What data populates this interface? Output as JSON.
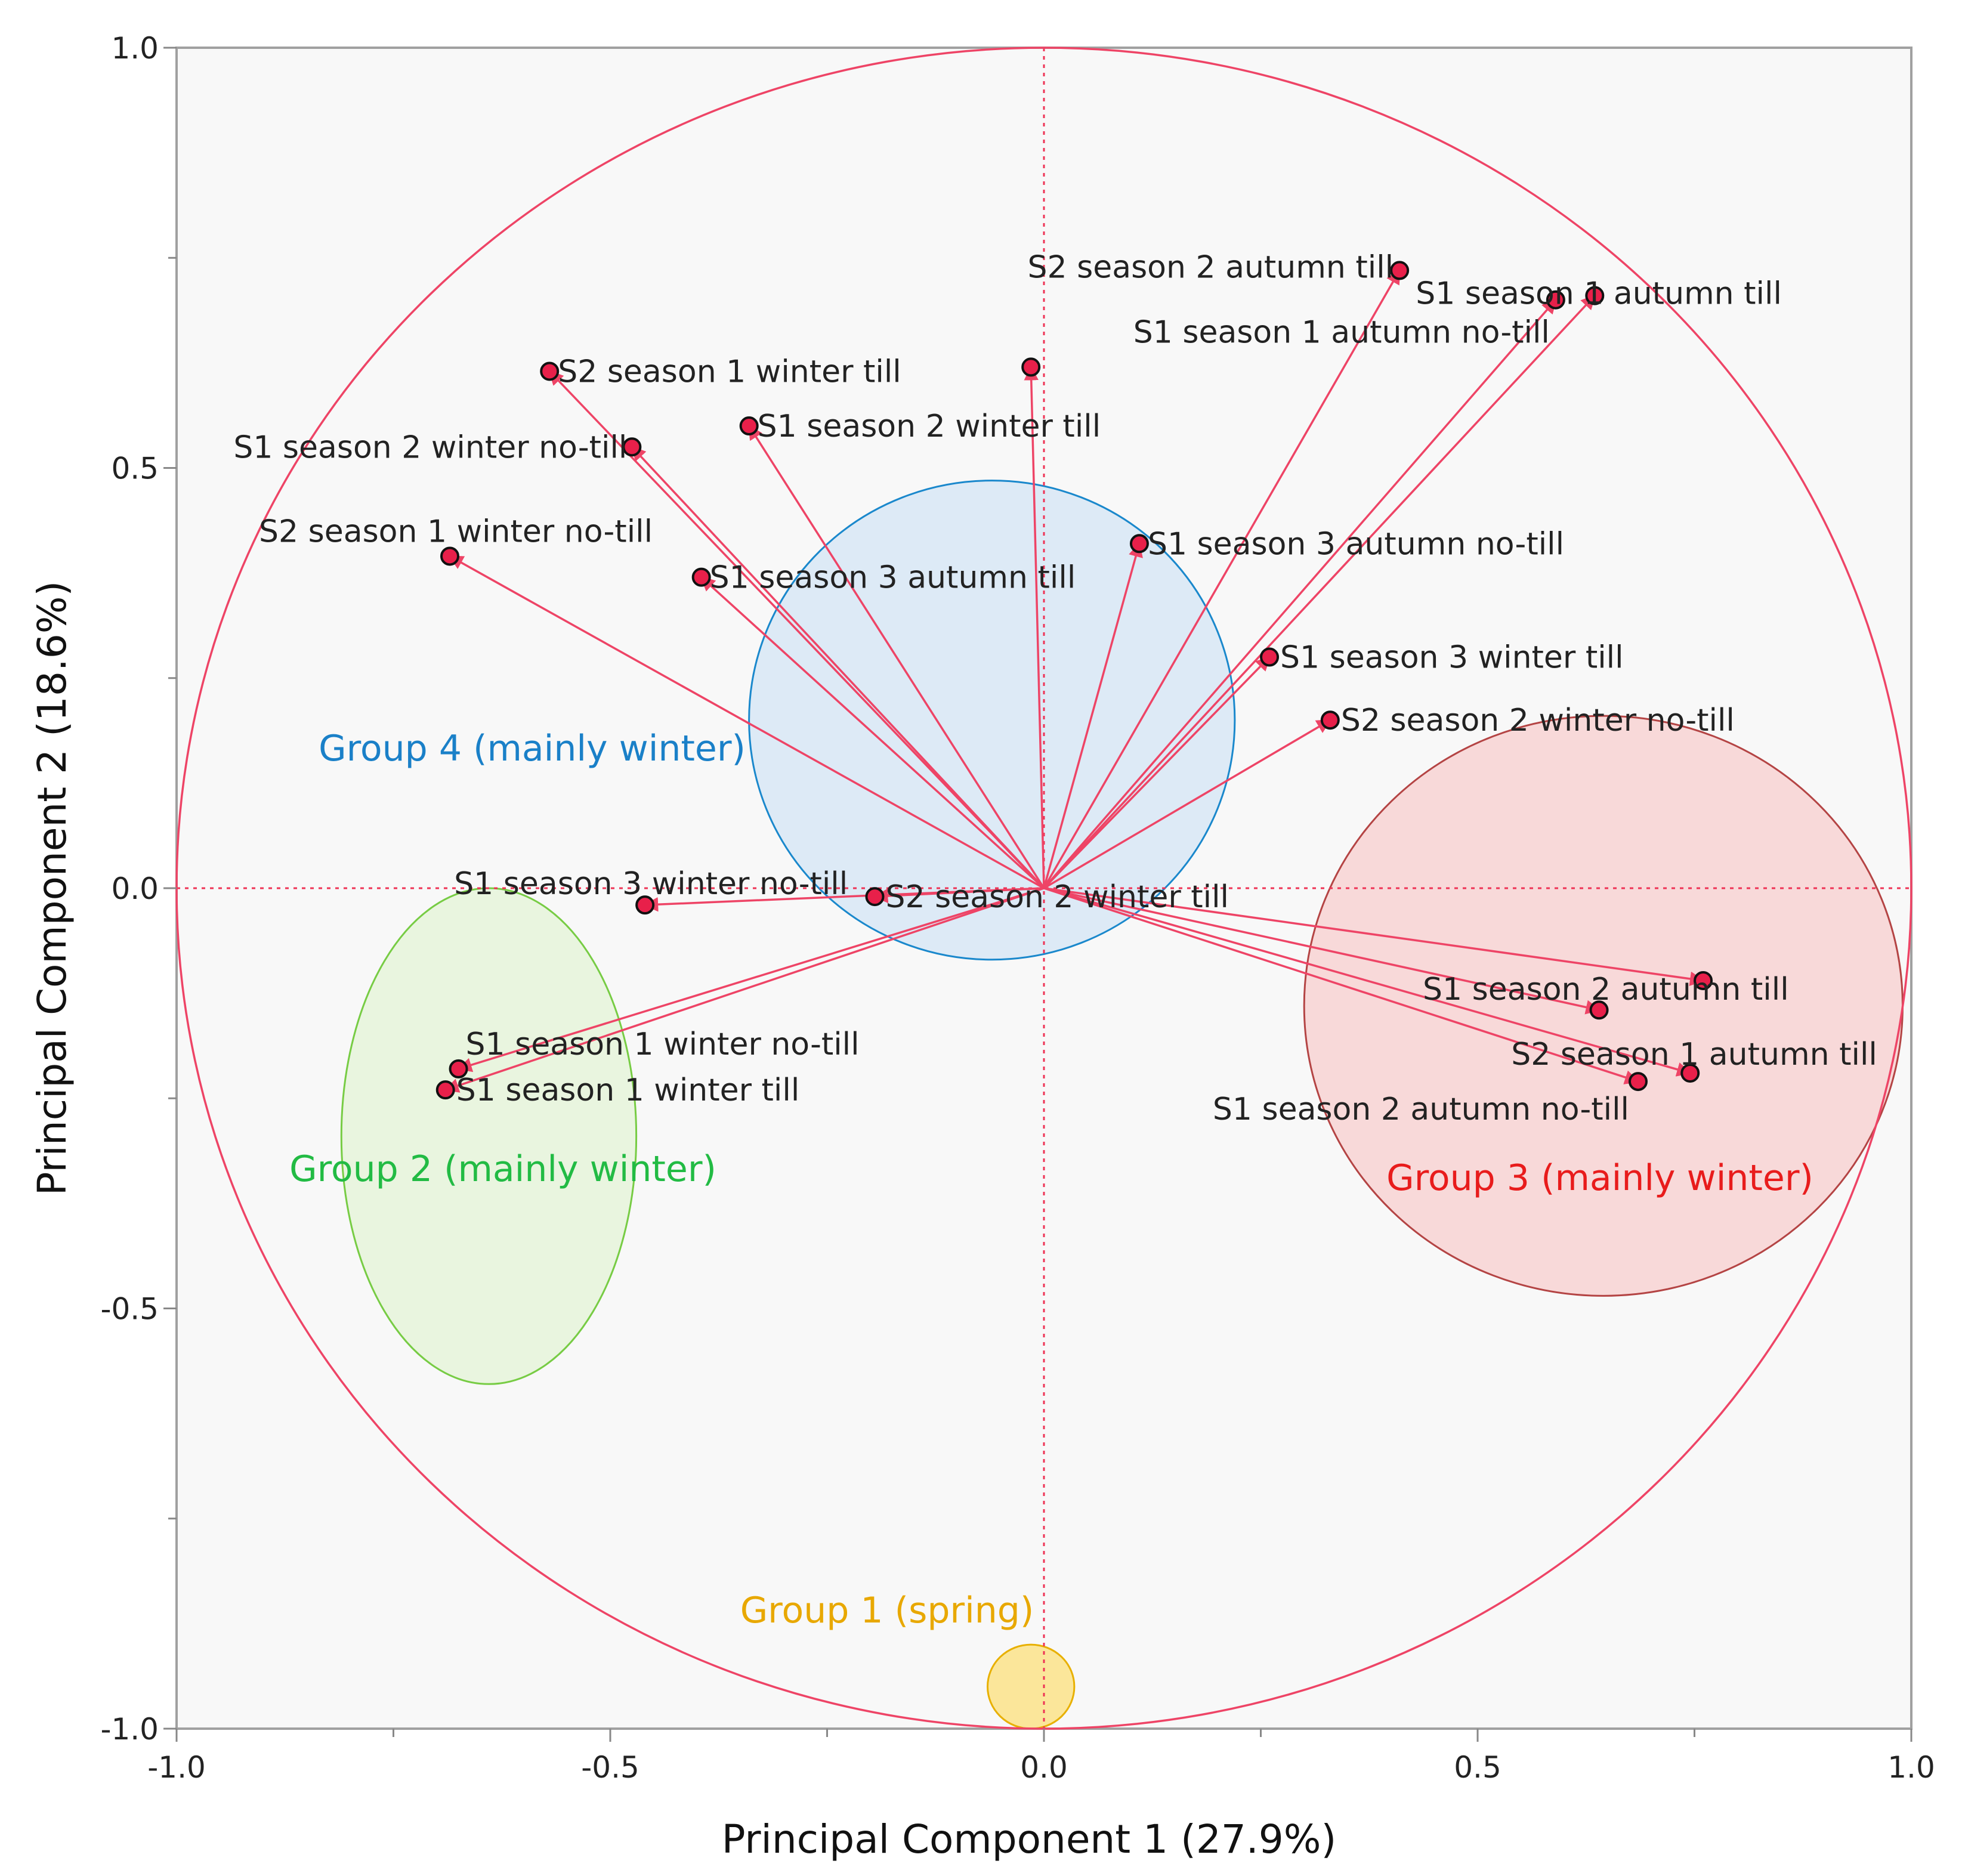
{
  "chart_data": {
    "type": "scatter",
    "subtype": "pca-loading-biplot",
    "xlabel": "Principal Component 1 (27.9%)",
    "ylabel": "Principal Component 2 (18.6%)",
    "xlim": [
      -1.0,
      1.0
    ],
    "ylim": [
      -1.0,
      1.0
    ],
    "xticks": [
      {
        "value": -1.0,
        "label": "-1.0"
      },
      {
        "value": -0.5,
        "label": "-0.5"
      },
      {
        "value": 0.0,
        "label": "0.0"
      },
      {
        "value": 0.5,
        "label": "0.5"
      },
      {
        "value": 1.0,
        "label": "1.0"
      }
    ],
    "yticks": [
      {
        "value": 1.0,
        "label": "1.0"
      },
      {
        "value": 0.5,
        "label": "0.5"
      },
      {
        "value": 0.0,
        "label": "0.0"
      },
      {
        "value": -0.5,
        "label": "-0.5"
      },
      {
        "value": -1.0,
        "label": "-1.0"
      }
    ],
    "loadings": [
      {
        "label": "S2 season 2 autumn till",
        "x": 0.41,
        "y": 0.735
      },
      {
        "label": "S1 season 1 autumn till",
        "x": 0.635,
        "y": 0.705
      },
      {
        "label": "S1 season 1 autumn no-till",
        "x": 0.59,
        "y": 0.7
      },
      {
        "label": "",
        "x": -0.015,
        "y": 0.62
      },
      {
        "label": "S2 season 1 winter till",
        "x": -0.57,
        "y": 0.615
      },
      {
        "label": "S1 season 2 winter till",
        "x": -0.34,
        "y": 0.55
      },
      {
        "label": "S1 season 2 winter no-till",
        "x": -0.475,
        "y": 0.525
      },
      {
        "label": "S2 season 1 winter no-till",
        "x": -0.685,
        "y": 0.395
      },
      {
        "label": "S1 season 3 autumn no-till",
        "x": 0.11,
        "y": 0.41
      },
      {
        "label": "S1 season 3 autumn till",
        "x": -0.395,
        "y": 0.37
      },
      {
        "label": "S1 season 3 winter till",
        "x": 0.26,
        "y": 0.275
      },
      {
        "label": "S2 season 2 winter no-till",
        "x": 0.33,
        "y": 0.2
      },
      {
        "label": "S1 season 3 winter no-till",
        "x": -0.46,
        "y": -0.02
      },
      {
        "label": "S2 season 2 winter till",
        "x": -0.195,
        "y": -0.01
      },
      {
        "label": "S1 season 2 autumn till",
        "x": 0.76,
        "y": -0.11
      },
      {
        "label": "",
        "x": 0.64,
        "y": -0.145
      },
      {
        "label": "S2 season 1 autumn till",
        "x": 0.745,
        "y": -0.22
      },
      {
        "label": "S1 season 2 autumn no-till",
        "x": 0.685,
        "y": -0.23
      },
      {
        "label": "S1 season 1 winter no-till",
        "x": -0.675,
        "y": -0.215
      },
      {
        "label": "S1 season 1 winter till",
        "x": -0.69,
        "y": -0.24
      }
    ],
    "groups": [
      {
        "label": "Group 1 (spring)",
        "color": "#e8a800",
        "fill": "#fbe38a",
        "stroke": "#e8b000",
        "center": [
          -0.015,
          -0.95
        ],
        "radii": [
          0.05,
          0.05
        ]
      },
      {
        "label": "Group 2 (mainly winter)",
        "color": "#22bb44",
        "fill": "#e6f4da",
        "stroke": "#77cc44",
        "center": [
          -0.64,
          -0.295
        ],
        "radii": [
          0.17,
          0.295
        ]
      },
      {
        "label": "Group 3 (mainly winter)",
        "color": "#e81c1c",
        "fill": "#f8d4d4",
        "stroke": "#b44444",
        "center": [
          0.645,
          -0.14
        ],
        "radii": [
          0.345,
          0.345
        ]
      },
      {
        "label": "Group 4 (mainly winter)",
        "color": "#1a80c8",
        "fill": "#d8e8f6",
        "stroke": "#1a88cc",
        "center": [
          -0.06,
          0.2
        ],
        "radii": [
          0.28,
          0.285
        ]
      }
    ],
    "unit_circle": true,
    "reference_lines": [
      "x=0",
      "y=0"
    ],
    "arrow_color": "#ee4466"
  }
}
